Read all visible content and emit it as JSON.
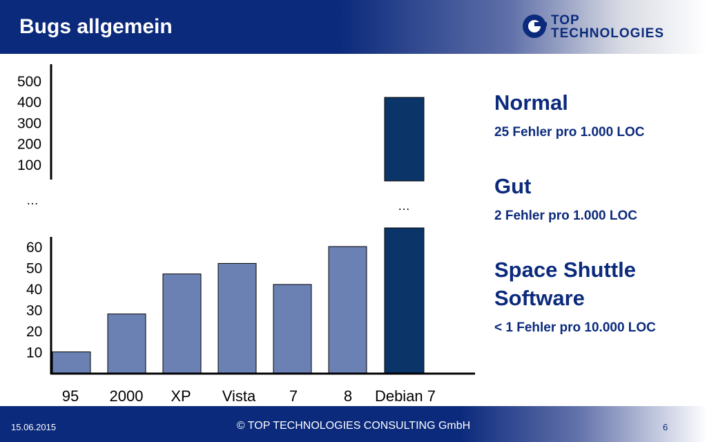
{
  "header": {
    "title": "Bugs allgemein"
  },
  "logo": {
    "line1": "TOP",
    "line2": "TECHNOLOGIES"
  },
  "chart_data": {
    "type": "bar",
    "categories": [
      "95",
      "2000",
      "XP",
      "Vista",
      "7",
      "8",
      "Debian 7"
    ],
    "values": [
      10,
      28,
      47,
      52,
      42,
      60,
      420
    ],
    "axis_break": true,
    "lower_ticks": [
      "10",
      "20",
      "30",
      "40",
      "50",
      "60"
    ],
    "upper_ticks": [
      "100",
      "200",
      "300",
      "400",
      "500"
    ],
    "ellipsis": "…",
    "colors": {
      "default": "#6b81b4",
      "highlight": "#0b3568"
    },
    "grid": false
  },
  "right_panel": {
    "normal_heading": "Normal",
    "normal_text": "25 Fehler pro 1.000 LOC",
    "gut_heading": "Gut",
    "gut_text": "2 Fehler pro 1.000 LOC",
    "shuttle_heading_1": "Space Shuttle",
    "shuttle_heading_2": "Software",
    "shuttle_text": "< 1 Fehler pro 10.000 LOC"
  },
  "footer": {
    "date": "15.06.2015",
    "copyright": "© TOP TECHNOLOGIES CONSULTING GmbH",
    "page": "6"
  }
}
